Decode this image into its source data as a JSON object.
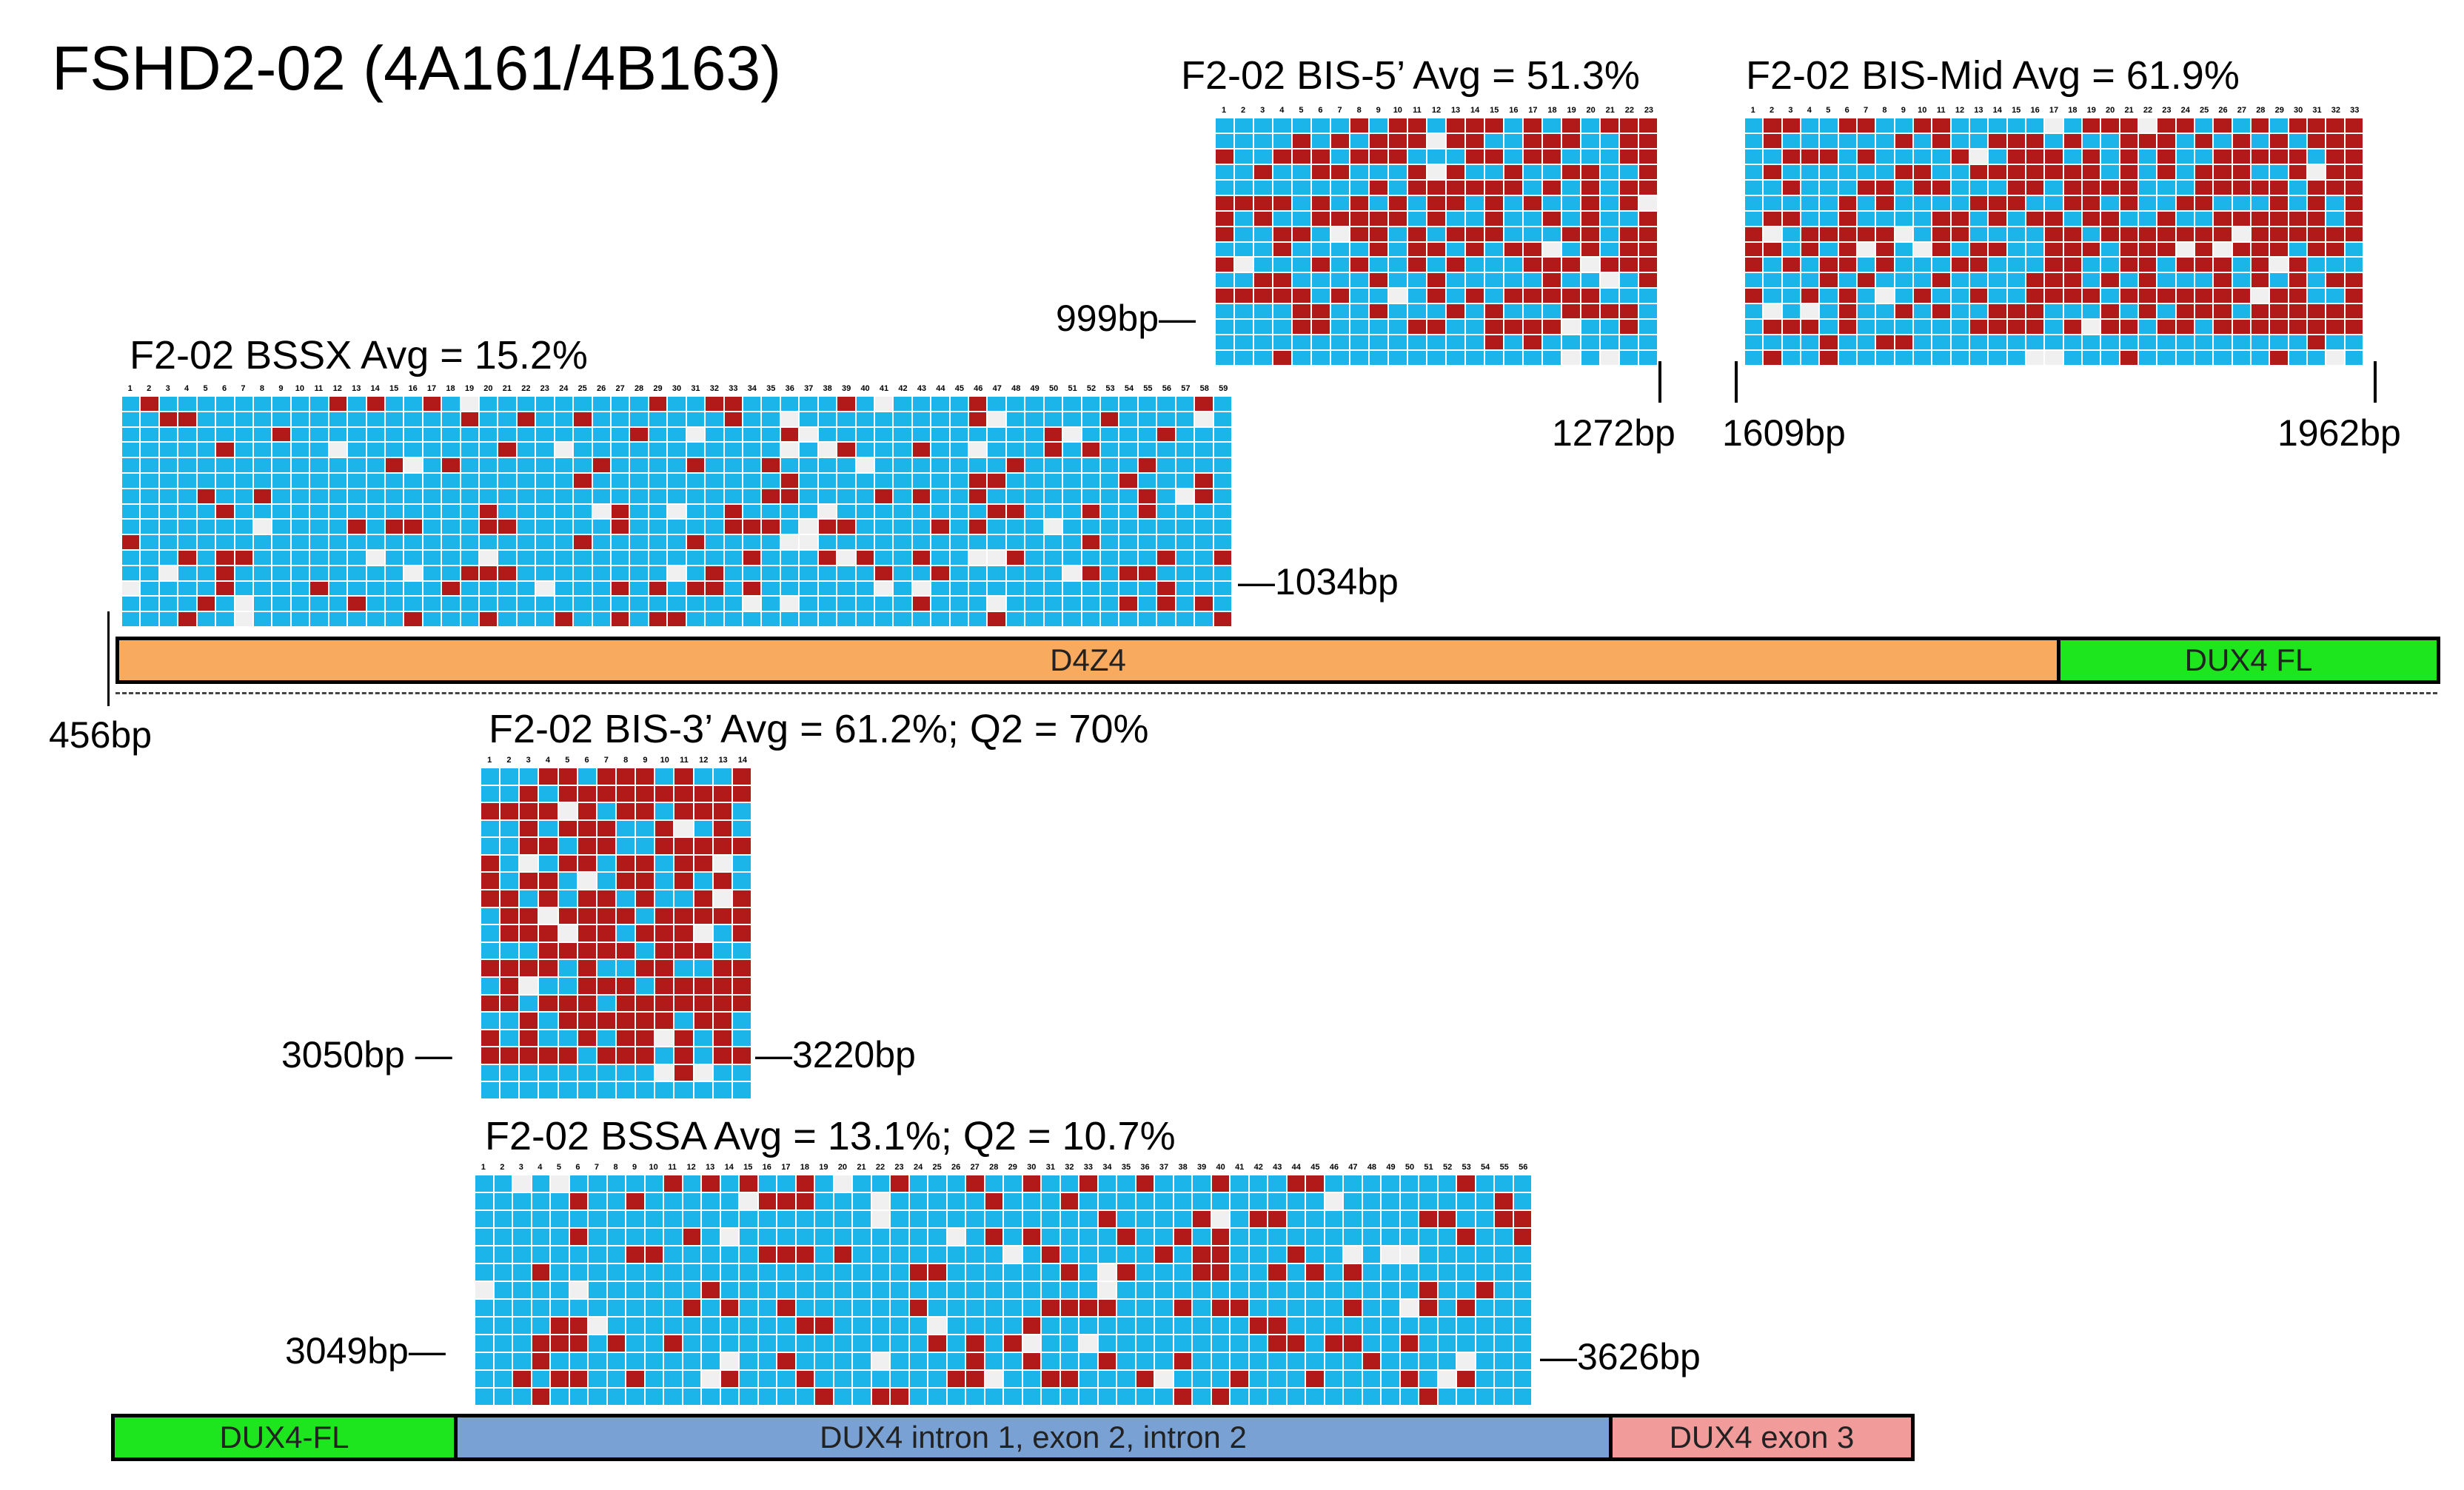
{
  "title": "FSHD2-02 (4A161/4B163)",
  "colors": {
    "unmethylated": "#1cb5ea",
    "methylated": "#b21a1a",
    "missing": "#f0f0f0"
  },
  "panels": {
    "bssx": {
      "label": "F2-02 BSSX  Avg = 15.2%",
      "cols": 59,
      "rows": 15,
      "seed": 11,
      "p": 0.15,
      "end_label": "—1034bp"
    },
    "bis5": {
      "label": "F2-02 BIS-5’  Avg = 51.3%",
      "cols": 23,
      "rows": 16,
      "seed": 23,
      "p": 0.513,
      "left_label": "999bp—",
      "end_label": "1272bp"
    },
    "bismid": {
      "label": "F2-02 BIS-Mid  Avg = 61.9%",
      "cols": 33,
      "rows": 16,
      "seed": 37,
      "p": 0.619,
      "start_label": "1609bp",
      "end_label": "1962bp"
    },
    "bis3": {
      "label": "F2-02 BIS-3’  Avg = 61.2%; Q2 = 70%",
      "cols": 14,
      "rows": 19,
      "seed": 51,
      "p": 0.612,
      "left_label": "3050bp —",
      "end_label": "—3220bp"
    },
    "bssa": {
      "label": "F2-02 BSSA   Avg = 13.1%; Q2 = 10.7%",
      "cols": 56,
      "rows": 13,
      "seed": 67,
      "p": 0.131,
      "left_label": "3049bp—",
      "end_label": "—3626bp"
    }
  },
  "marker_456": "456bp",
  "bar_top": [
    {
      "label": "D4Z4",
      "color": "#f8ab5f"
    },
    {
      "label": "DUX4 FL",
      "color": "#1ee61e"
    }
  ],
  "bar_bottom": [
    {
      "label": "DUX4-FL",
      "color": "#1ee61e"
    },
    {
      "label": "DUX4 intron 1, exon 2, intron 2",
      "color": "#7aa1d4"
    },
    {
      "label": "DUX4 exon 3",
      "color": "#f29b9b"
    }
  ]
}
